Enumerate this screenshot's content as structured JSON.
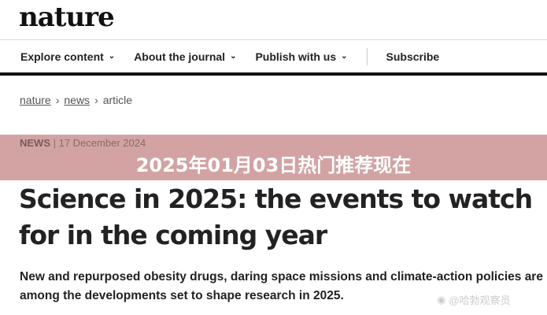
{
  "logo": "nature",
  "nav": {
    "items": [
      "Explore content",
      "About the journal",
      "Publish with us"
    ],
    "subscribe": "Subscribe"
  },
  "breadcrumb": {
    "items": [
      "nature",
      "news",
      "article"
    ],
    "separator": "›"
  },
  "meta": {
    "type": "NEWS",
    "date": "17 December 2024"
  },
  "banner": {
    "text": "2025年01月03日热门推荐现在",
    "color": "#d4a3a3"
  },
  "article": {
    "title": "Science in 2025: the events to watch for in the coming year",
    "standfirst": "New and repurposed obesity drugs, daring space missions and climate-action policies are among the developments set to shape research in 2025."
  },
  "watermark": {
    "text": "@哈勃观察员",
    "icon": "weibo-icon"
  }
}
